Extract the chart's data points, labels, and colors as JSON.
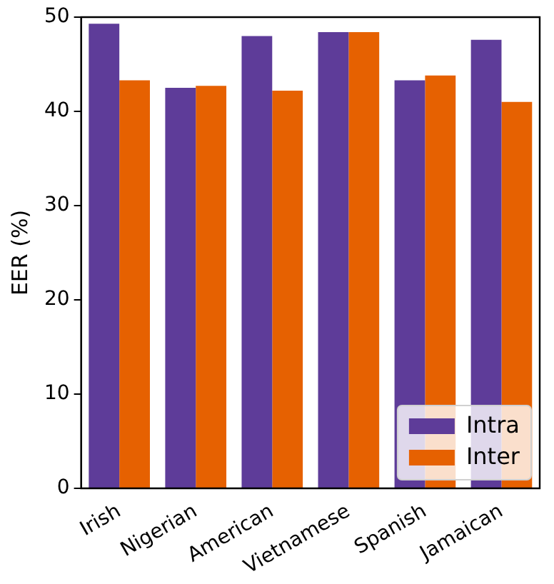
{
  "chart_data": {
    "type": "bar",
    "ylabel": "EER (%)",
    "categories": [
      "Irish",
      "Nigerian",
      "American",
      "Vietnamese",
      "Spanish",
      "Jamaican"
    ],
    "series": [
      {
        "name": "Intra",
        "color": "#5e3c99",
        "values": [
          49.3,
          42.5,
          48.0,
          48.4,
          43.3,
          47.6
        ]
      },
      {
        "name": "Inter",
        "color": "#e66101",
        "values": [
          43.3,
          42.7,
          42.2,
          48.4,
          43.8,
          41.0
        ]
      }
    ],
    "ylim": [
      0,
      50
    ],
    "yticks": [
      0,
      10,
      20,
      30,
      40,
      50
    ],
    "grid": false,
    "legend": "bottom right"
  }
}
